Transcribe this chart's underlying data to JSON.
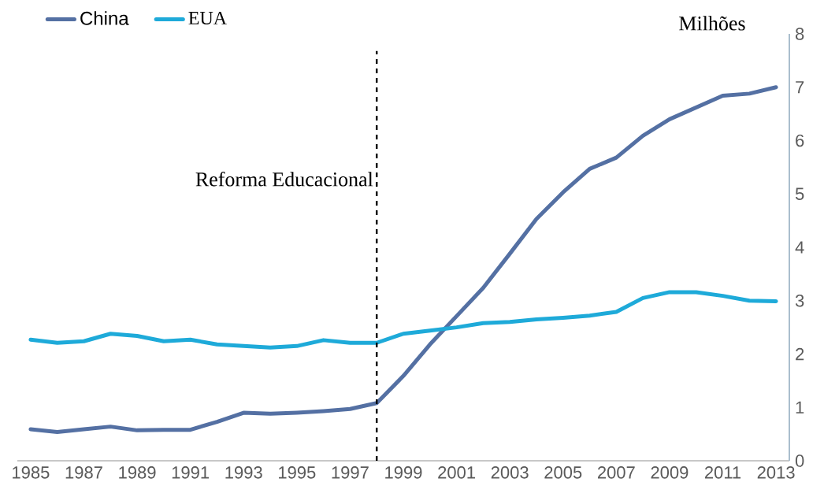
{
  "chart_data": {
    "type": "line",
    "ylabel": "Milhões",
    "legend": "top left",
    "line_style": "solid",
    "x": [
      1985,
      1986,
      1987,
      1988,
      1989,
      1990,
      1991,
      1992,
      1993,
      1994,
      1995,
      1996,
      1997,
      1998,
      1999,
      2000,
      2001,
      2002,
      2003,
      2004,
      2005,
      2006,
      2007,
      2008,
      2009,
      2010,
      2011,
      2012,
      2013
    ],
    "series": [
      {
        "name": "China",
        "color": "#5470a3",
        "values": [
          0.59,
          0.54,
          0.59,
          0.64,
          0.57,
          0.58,
          0.58,
          0.73,
          0.9,
          0.88,
          0.9,
          0.93,
          0.97,
          1.08,
          1.59,
          2.18,
          2.71,
          3.24,
          3.88,
          4.53,
          5.03,
          5.47,
          5.68,
          6.09,
          6.4,
          6.62,
          6.84,
          6.88,
          7.0
        ]
      },
      {
        "name": "EUA",
        "color": "#1eaad9",
        "values": [
          2.27,
          2.21,
          2.24,
          2.38,
          2.34,
          2.24,
          2.27,
          2.18,
          2.15,
          2.12,
          2.15,
          2.26,
          2.21,
          2.21,
          2.38,
          2.44,
          2.5,
          2.58,
          2.6,
          2.65,
          2.68,
          2.72,
          2.79,
          3.05,
          3.16,
          3.16,
          3.09,
          3.0,
          2.99
        ]
      }
    ],
    "xlim": [
      1984.5,
      2013.5
    ],
    "xticks": [
      1985,
      1987,
      1989,
      1991,
      1993,
      1995,
      1997,
      1999,
      2001,
      2003,
      2005,
      2007,
      2009,
      2011,
      2013
    ],
    "ylim": [
      0,
      8
    ],
    "yticks": [
      0,
      1,
      2,
      3,
      4,
      5,
      6,
      7,
      8
    ],
    "ref_lines": [
      {
        "axis": "x",
        "value": 1998,
        "label": "Reforma Educacional",
        "color": "#000000",
        "line_style": "dashed"
      }
    ]
  }
}
